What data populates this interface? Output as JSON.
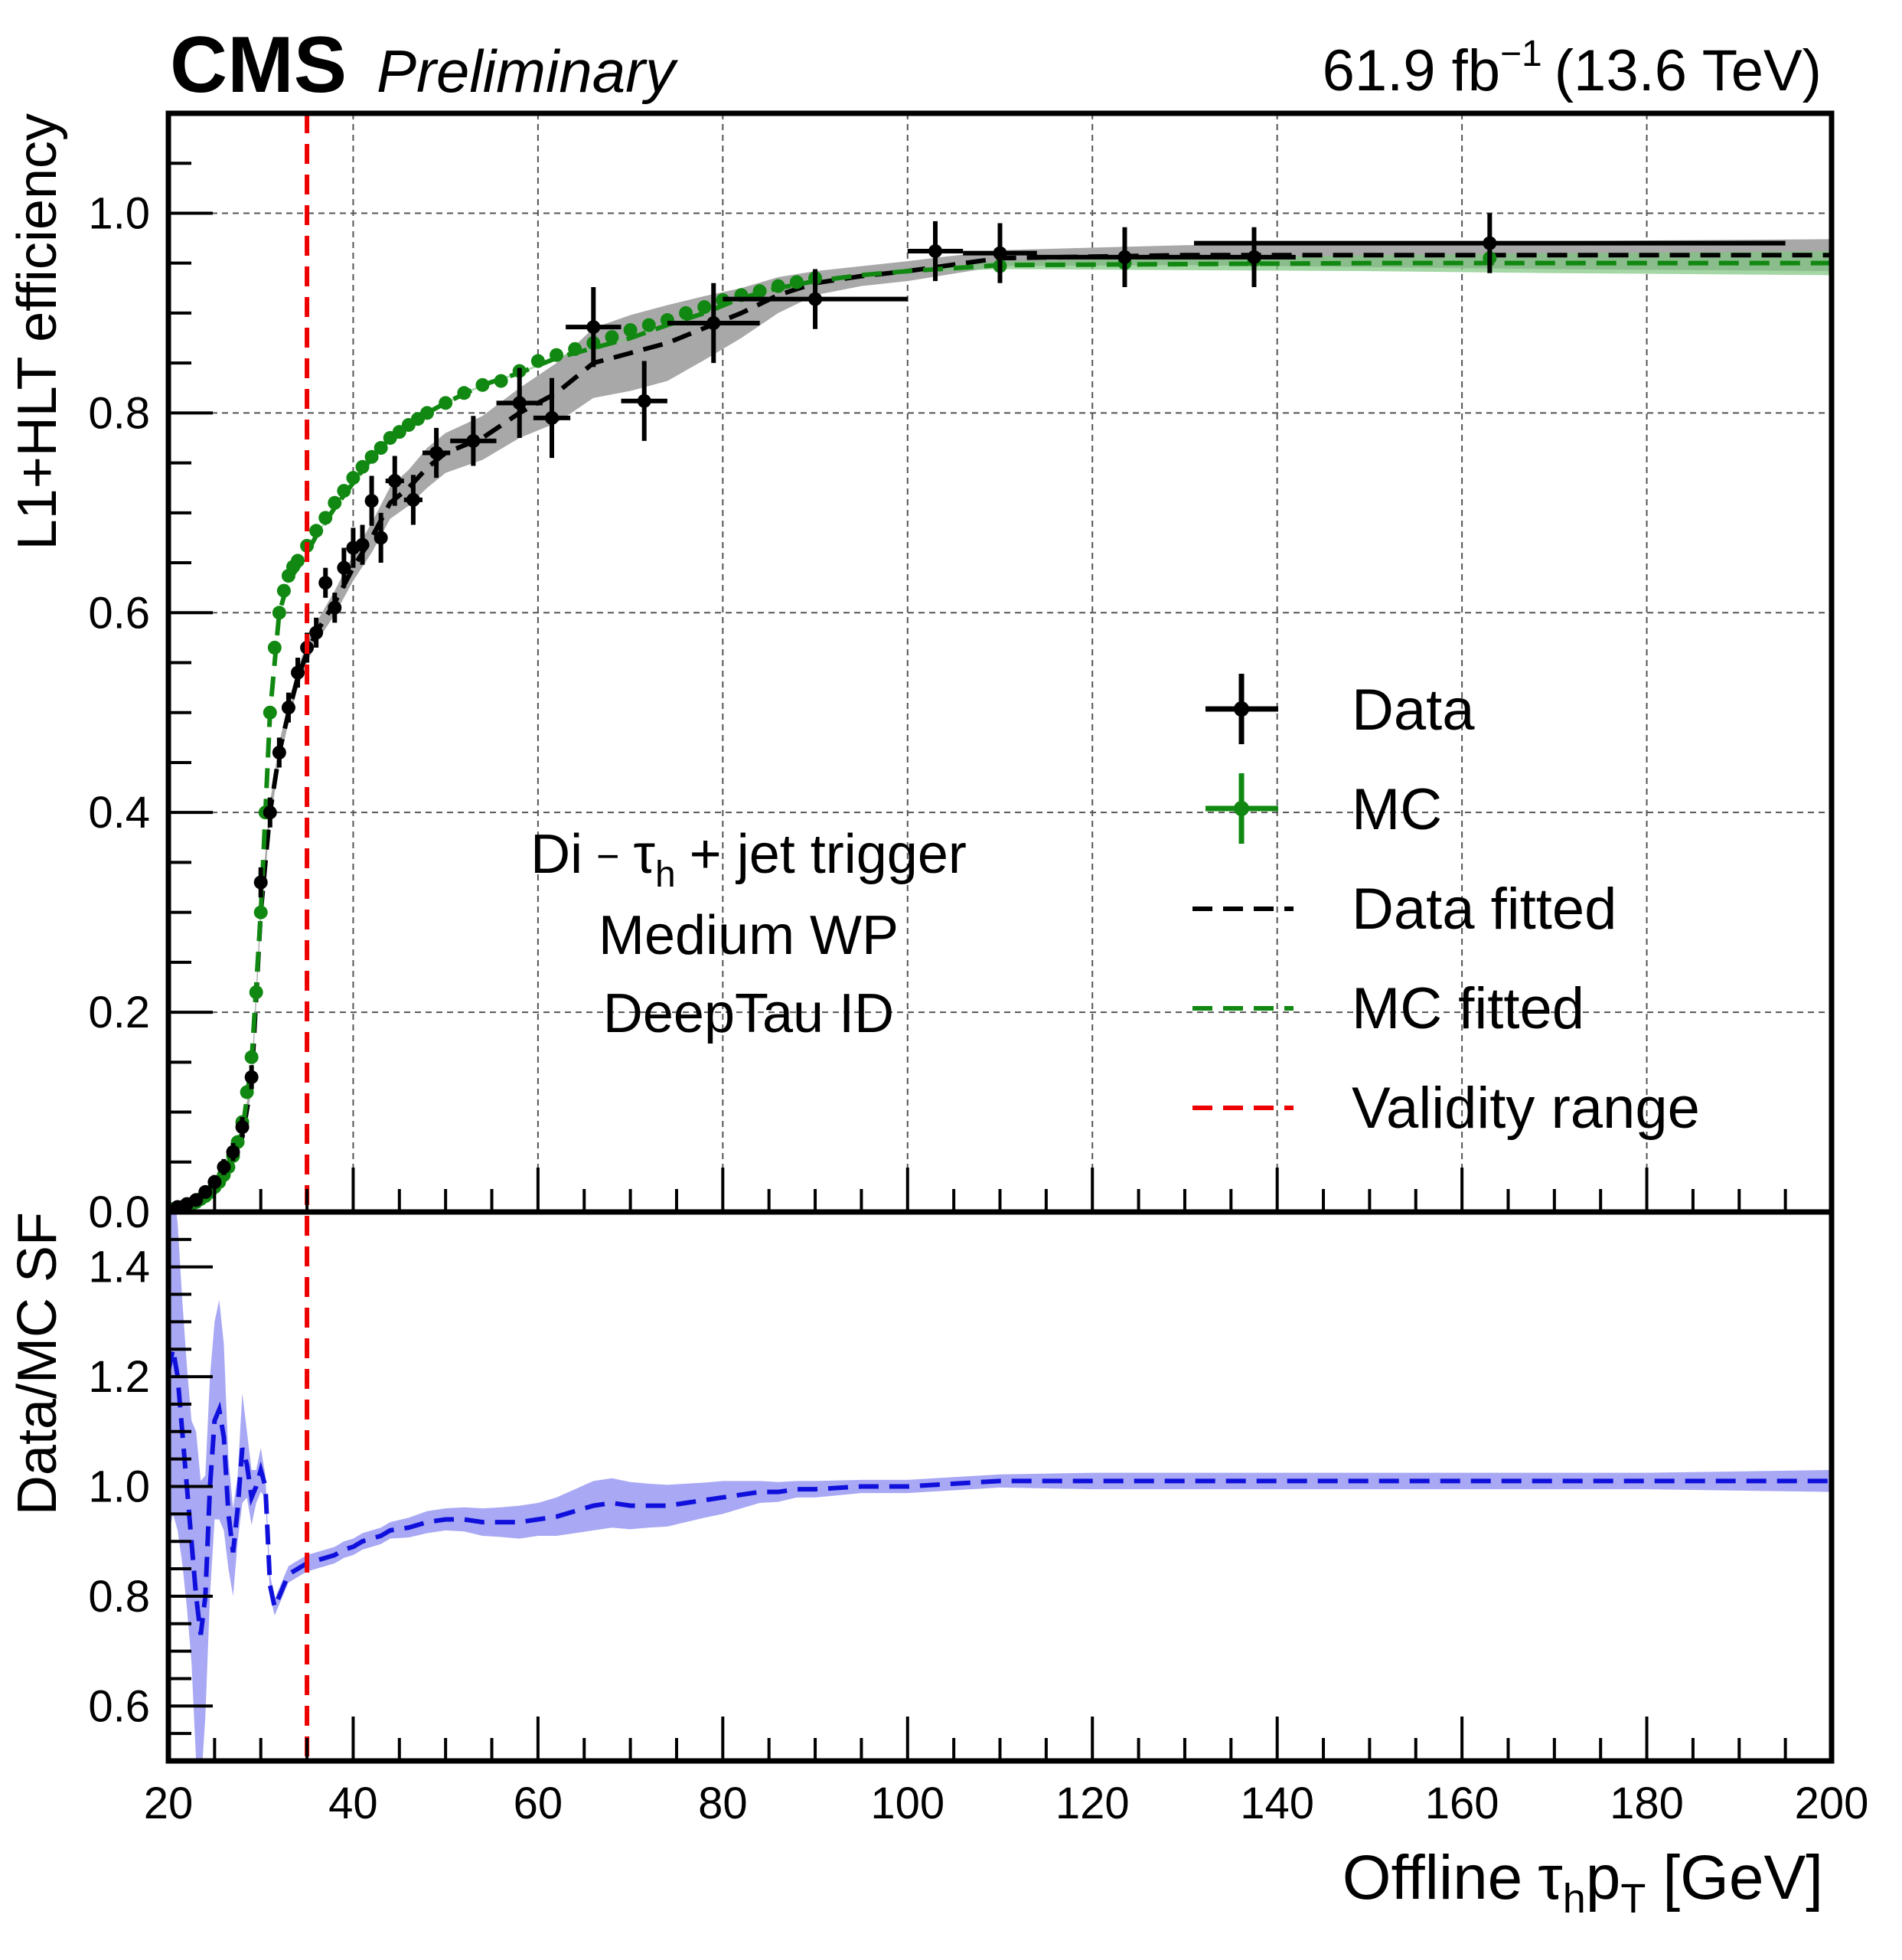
{
  "header": {
    "experiment": "CMS",
    "status": "Preliminary",
    "lumi_value": "61.9 fb",
    "lumi_exp": "−1",
    "energy": "(13.6 TeV)"
  },
  "annotation": {
    "line1_pre": "Di",
    "line1_dash": "−",
    "line1_tau": "τ",
    "line1_h": "h",
    "line1_post": "+ jet trigger",
    "line2": "Medium WP",
    "line3": "DeepTau ID"
  },
  "legend": {
    "data": "Data",
    "mc": "MC",
    "data_fit": "Data fitted",
    "mc_fit": "MC fitted",
    "validity": "Validity range"
  },
  "xaxis": {
    "label_pre": "Offline",
    "label_tau": "τ",
    "label_h": "h",
    "label_p": "p",
    "label_T": "T",
    "label_post": "[GeV]"
  },
  "colors": {
    "data": "#000000",
    "mc": "#118811",
    "validity": "#ee0000",
    "ratio": "#1010dd",
    "ratio_band": "#a8a8f4",
    "data_band": "#a8a8a8"
  },
  "chart_data": [
    {
      "type": "scatter",
      "title": "",
      "xlabel": "Offline τhpT [GeV]",
      "ylabel": "L1+HLT efficiency",
      "xlim": [
        20,
        200
      ],
      "ylim": [
        0,
        1.1
      ],
      "grid": true,
      "xticks": [
        20,
        40,
        60,
        80,
        100,
        120,
        140,
        160,
        180,
        200
      ],
      "yticks": [
        0.0,
        0.2,
        0.4,
        0.6,
        0.8,
        1.0
      ],
      "ytick_labels": [
        "0.0",
        "0.2",
        "0.4",
        "0.6",
        "0.8",
        "1.0"
      ],
      "validity_range_x": 35,
      "series": [
        {
          "name": "Data",
          "points": [
            [
              21,
              0.005,
              0.5,
              0.003
            ],
            [
              22,
              0.008,
              0.5,
              0.004
            ],
            [
              23,
              0.012,
              0.5,
              0.005
            ],
            [
              24,
              0.02,
              0.5,
              0.006
            ],
            [
              25,
              0.03,
              0.5,
              0.007
            ],
            [
              26,
              0.045,
              0.5,
              0.008
            ],
            [
              27,
              0.06,
              0.5,
              0.009
            ],
            [
              28,
              0.085,
              0.5,
              0.01
            ],
            [
              29,
              0.135,
              0.5,
              0.012
            ],
            [
              30,
              0.33,
              0.5,
              0.015
            ],
            [
              31,
              0.4,
              0.5,
              0.015
            ],
            [
              32,
              0.46,
              0.5,
              0.015
            ],
            [
              33,
              0.505,
              0.5,
              0.015
            ],
            [
              34,
              0.54,
              0.5,
              0.015
            ],
            [
              35,
              0.565,
              0.5,
              0.015
            ],
            [
              36,
              0.58,
              0.5,
              0.015
            ],
            [
              37,
              0.63,
              0.5,
              0.015
            ],
            [
              38,
              0.605,
              0.5,
              0.015
            ],
            [
              39,
              0.645,
              0.5,
              0.02
            ],
            [
              40,
              0.665,
              0.5,
              0.02
            ],
            [
              41,
              0.668,
              0.5,
              0.02
            ],
            [
              42,
              0.712,
              0.5,
              0.025
            ],
            [
              43,
              0.675,
              0.5,
              0.025
            ],
            [
              44.5,
              0.732,
              1,
              0.025
            ],
            [
              46.5,
              0.713,
              1,
              0.025
            ],
            [
              49,
              0.76,
              1.5,
              0.025
            ],
            [
              53,
              0.772,
              2.5,
              0.025
            ],
            [
              58,
              0.81,
              2.5,
              0.035
            ],
            [
              61.5,
              0.795,
              2,
              0.04
            ],
            [
              66,
              0.886,
              3,
              0.04
            ],
            [
              71.5,
              0.812,
              2.5,
              0.04
            ],
            [
              79,
              0.89,
              5,
              0.04
            ],
            [
              90,
              0.914,
              10,
              0.03
            ],
            [
              103,
              0.962,
              3,
              0.03
            ],
            [
              110,
              0.96,
              4,
              0.03
            ],
            [
              123.5,
              0.956,
              9.5,
              0.03
            ],
            [
              137.5,
              0.956,
              4.5,
              0.03
            ],
            [
              163,
              0.97,
              32,
              0.03
            ]
          ]
        },
        {
          "name": "MC",
          "x": [
            20.5,
            21,
            21.5,
            22,
            22.5,
            23,
            23.5,
            24,
            24.5,
            25,
            25.5,
            26,
            26.5,
            27,
            27.5,
            28,
            28.5,
            29,
            29.5,
            30,
            30.5,
            31,
            31.5,
            32,
            32.5,
            33,
            33.5,
            34,
            35,
            36,
            37,
            38,
            39,
            40,
            41,
            42,
            43,
            44,
            45,
            46,
            47,
            48,
            50,
            52,
            54,
            56,
            58,
            60,
            62,
            64,
            66,
            68,
            70,
            72,
            74,
            76,
            78,
            80,
            82,
            84,
            86,
            88,
            90,
            110,
            123.5,
            137.5,
            163
          ],
          "y": [
            0.003,
            0.004,
            0.005,
            0.006,
            0.008,
            0.01,
            0.013,
            0.016,
            0.02,
            0.025,
            0.03,
            0.037,
            0.045,
            0.056,
            0.07,
            0.09,
            0.12,
            0.155,
            0.22,
            0.3,
            0.4,
            0.5,
            0.565,
            0.6,
            0.622,
            0.637,
            0.646,
            0.652,
            0.667,
            0.682,
            0.695,
            0.71,
            0.722,
            0.735,
            0.746,
            0.756,
            0.765,
            0.775,
            0.781,
            0.788,
            0.794,
            0.8,
            0.81,
            0.82,
            0.828,
            0.832,
            0.842,
            0.852,
            0.858,
            0.864,
            0.87,
            0.876,
            0.883,
            0.888,
            0.893,
            0.9,
            0.906,
            0.913,
            0.918,
            0.922,
            0.927,
            0.931,
            0.935,
            0.947,
            0.95,
            0.953,
            0.955
          ]
        },
        {
          "name": "Data fitted",
          "x": [
            20,
            22,
            24,
            26,
            28,
            29,
            30,
            31,
            32,
            33,
            34,
            35,
            36,
            38,
            40,
            42,
            44,
            46,
            48,
            50,
            54,
            58,
            62,
            66,
            70,
            74,
            78,
            82,
            86,
            90,
            95,
            100,
            110,
            130,
            150,
            170,
            200
          ],
          "y": [
            0.003,
            0.008,
            0.018,
            0.035,
            0.075,
            0.13,
            0.3,
            0.4,
            0.46,
            0.5,
            0.535,
            0.56,
            0.58,
            0.61,
            0.645,
            0.675,
            0.71,
            0.725,
            0.745,
            0.76,
            0.775,
            0.8,
            0.82,
            0.85,
            0.86,
            0.87,
            0.885,
            0.9,
            0.918,
            0.93,
            0.937,
            0.942,
            0.955,
            0.958,
            0.958,
            0.958,
            0.958
          ],
          "band_half_width": [
            0.002,
            0.003,
            0.004,
            0.005,
            0.006,
            0.008,
            0.01,
            0.01,
            0.01,
            0.01,
            0.01,
            0.01,
            0.01,
            0.012,
            0.013,
            0.015,
            0.016,
            0.018,
            0.02,
            0.02,
            0.022,
            0.025,
            0.03,
            0.035,
            0.038,
            0.038,
            0.032,
            0.025,
            0.018,
            0.012,
            0.01,
            0.01,
            0.008,
            0.01,
            0.012,
            0.014,
            0.016
          ]
        },
        {
          "name": "MC fitted",
          "x": [
            20,
            22,
            24,
            26,
            28,
            29,
            30,
            31,
            32,
            33,
            34,
            35,
            36,
            38,
            40,
            42,
            44,
            46,
            48,
            50,
            54,
            58,
            62,
            66,
            70,
            74,
            78,
            82,
            86,
            90,
            95,
            100,
            110,
            130,
            150,
            170,
            200
          ],
          "y": [
            0.003,
            0.008,
            0.016,
            0.035,
            0.08,
            0.15,
            0.3,
            0.5,
            0.6,
            0.632,
            0.645,
            0.66,
            0.677,
            0.705,
            0.73,
            0.755,
            0.775,
            0.788,
            0.8,
            0.81,
            0.828,
            0.84,
            0.855,
            0.865,
            0.875,
            0.888,
            0.9,
            0.915,
            0.925,
            0.932,
            0.938,
            0.942,
            0.948,
            0.949,
            0.95,
            0.95,
            0.95
          ],
          "band_half_width": [
            0.001,
            0.001,
            0.001,
            0.001,
            0.001,
            0.001,
            0.001,
            0.001,
            0.001,
            0.001,
            0.001,
            0.001,
            0.001,
            0.001,
            0.001,
            0.001,
            0.001,
            0.001,
            0.001,
            0.001,
            0.001,
            0.001,
            0.001,
            0.001,
            0.001,
            0.001,
            0.001,
            0.001,
            0.001,
            0.001,
            0.001,
            0.001,
            0.004,
            0.006,
            0.008,
            0.01,
            0.012
          ]
        }
      ]
    },
    {
      "type": "line",
      "title": "",
      "xlabel": "Offline τhpT [GeV]",
      "ylabel": "Data/MC SF",
      "xlim": [
        20,
        200
      ],
      "ylim": [
        0.5,
        1.5
      ],
      "grid": false,
      "xticks": [
        20,
        40,
        60,
        80,
        100,
        120,
        140,
        160,
        180,
        200
      ],
      "xtick_labels": [
        "20",
        "40",
        "60",
        "80",
        "100",
        "120",
        "140",
        "160",
        "180",
        "200"
      ],
      "yticks": [
        0.6,
        0.8,
        1.0,
        1.2,
        1.4
      ],
      "ytick_labels": [
        "0.6",
        "0.8",
        "1.0",
        "1.2",
        "1.4"
      ],
      "series": [
        {
          "name": "Data/MC SF",
          "x": [
            20,
            20.5,
            21,
            21.5,
            22,
            22.5,
            23,
            23.5,
            24,
            24.5,
            25,
            25.5,
            26,
            26.5,
            27,
            27.5,
            28,
            28.5,
            29,
            29.5,
            30,
            30.5,
            31,
            31.5,
            32,
            33,
            34,
            35,
            36,
            37,
            38,
            39,
            40,
            41,
            42,
            43,
            44,
            46,
            48,
            50,
            52,
            54,
            56,
            58,
            60,
            62,
            64,
            66,
            68,
            70,
            72,
            74,
            76,
            78,
            80,
            82,
            84,
            86,
            88,
            90,
            95,
            100,
            105,
            110,
            120,
            140,
            160,
            180,
            200
          ],
          "y": [
            1.21,
            1.25,
            1.2,
            1.1,
            1.0,
            0.9,
            0.8,
            0.73,
            0.8,
            1.0,
            1.12,
            1.14,
            1.09,
            0.95,
            0.88,
            0.96,
            1.07,
            1.04,
            0.98,
            1.0,
            1.03,
            1.0,
            0.82,
            0.78,
            0.8,
            0.84,
            0.85,
            0.86,
            0.865,
            0.87,
            0.875,
            0.885,
            0.89,
            0.9,
            0.905,
            0.91,
            0.92,
            0.925,
            0.935,
            0.94,
            0.94,
            0.935,
            0.935,
            0.935,
            0.94,
            0.945,
            0.955,
            0.965,
            0.97,
            0.965,
            0.965,
            0.965,
            0.97,
            0.975,
            0.98,
            0.985,
            0.99,
            0.99,
            0.995,
            0.995,
            1.0,
            1.0,
            1.005,
            1.01,
            1.01,
            1.01,
            1.01,
            1.01,
            1.01
          ],
          "band_half_width": [
            0.3,
            0.3,
            0.28,
            0.24,
            0.22,
            0.22,
            0.3,
            0.28,
            0.22,
            0.2,
            0.18,
            0.2,
            0.17,
            0.1,
            0.08,
            0.06,
            0.1,
            0.06,
            0.05,
            0.03,
            0.04,
            0.02,
            0.02,
            0.015,
            0.015,
            0.015,
            0.015,
            0.015,
            0.015,
            0.015,
            0.015,
            0.015,
            0.015,
            0.015,
            0.015,
            0.015,
            0.015,
            0.018,
            0.02,
            0.02,
            0.022,
            0.025,
            0.027,
            0.03,
            0.03,
            0.035,
            0.04,
            0.045,
            0.045,
            0.043,
            0.04,
            0.038,
            0.035,
            0.032,
            0.03,
            0.025,
            0.02,
            0.018,
            0.015,
            0.015,
            0.012,
            0.012,
            0.012,
            0.012,
            0.015,
            0.015,
            0.015,
            0.015,
            0.02
          ]
        }
      ]
    }
  ]
}
